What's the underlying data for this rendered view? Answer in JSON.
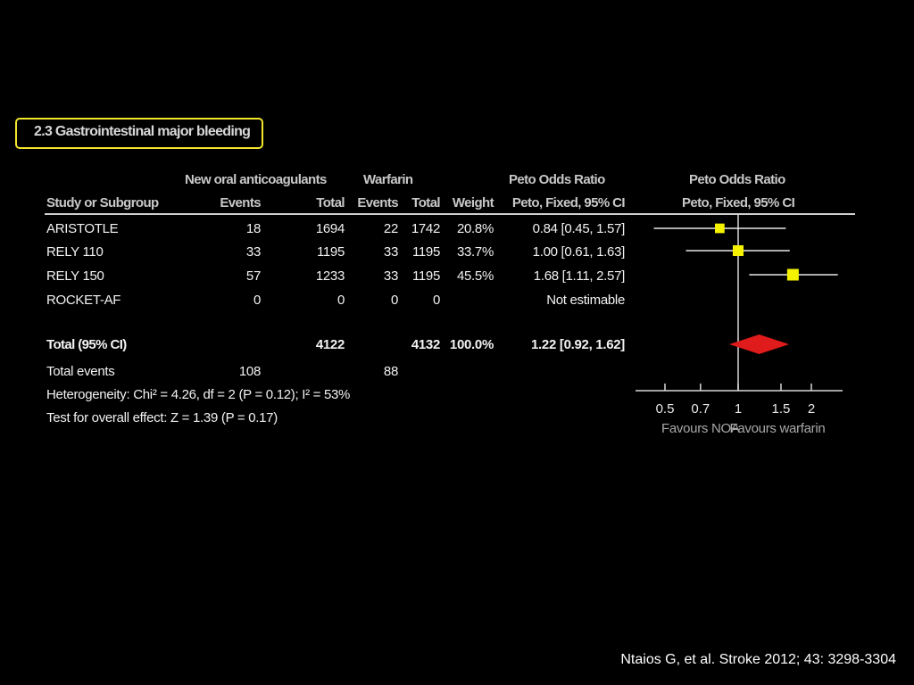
{
  "title": "2.3 Gastrointestinal major bleeding",
  "headers": {
    "group_noa": "New oral anticoagulants",
    "group_warfarin": "Warfarin",
    "group_or": "Peto Odds Ratio",
    "group_plot": "Peto Odds Ratio",
    "study": "Study or Subgroup",
    "events_noa": "Events",
    "total_noa": "Total",
    "events_w": "Events",
    "total_w": "Total",
    "weight": "Weight",
    "method": "Peto, Fixed, 95% CI",
    "method_plot": "Peto, Fixed, 95% CI"
  },
  "rows": [
    {
      "study": "ARISTOTLE",
      "events_noa": "18",
      "total_noa": "1694",
      "events_w": "22",
      "total_w": "1742",
      "weight": "20.8%",
      "ci": "0.84 [0.45, 1.57]"
    },
    {
      "study": "RELY 110",
      "events_noa": "33",
      "total_noa": "1195",
      "events_w": "33",
      "total_w": "1195",
      "weight": "33.7%",
      "ci": "1.00 [0.61, 1.63]"
    },
    {
      "study": "RELY 150",
      "events_noa": "57",
      "total_noa": "1233",
      "events_w": "33",
      "total_w": "1195",
      "weight": "45.5%",
      "ci": "1.68 [1.11, 2.57]"
    },
    {
      "study": "ROCKET-AF",
      "events_noa": "0",
      "total_noa": "0",
      "events_w": "0",
      "total_w": "0",
      "weight": "",
      "ci": "Not estimable"
    }
  ],
  "total": {
    "label": "Total (95% CI)",
    "total_noa": "4122",
    "total_w": "4132",
    "weight": "100.0%",
    "ci": "1.22 [0.92, 1.62]"
  },
  "total_events": {
    "label": "Total events",
    "noa": "108",
    "warfarin": "88"
  },
  "heterogeneity": "Heterogeneity: Chi² = 4.26, df = 2 (P = 0.12); I² = 53%",
  "overall_effect": "Test for overall effect: Z = 1.39 (P = 0.17)",
  "citation": "Ntaios  G, et al. Stroke 2012; 43: 3298-3304",
  "colors": {
    "square": "#f5f200",
    "diamond": "#e01b1b",
    "box_border": "#f2e52c"
  },
  "chart_data": {
    "type": "forest",
    "x_scale": "log",
    "xlim": [
      0.5,
      2
    ],
    "ticks": [
      0.5,
      0.7,
      1,
      1.5,
      2
    ],
    "tick_labels": [
      "0.5",
      "0.7",
      "1",
      "1.5",
      "2"
    ],
    "favours_left": "Favours NOA",
    "favours_right": "Favours warfarin",
    "studies": [
      {
        "name": "ARISTOTLE",
        "or": 0.84,
        "lo": 0.45,
        "hi": 1.57,
        "weight": 20.8
      },
      {
        "name": "RELY 110",
        "or": 1.0,
        "lo": 0.61,
        "hi": 1.63,
        "weight": 33.7
      },
      {
        "name": "RELY 150",
        "or": 1.68,
        "lo": 1.11,
        "hi": 2.57,
        "weight": 45.5
      }
    ],
    "pooled": {
      "or": 1.22,
      "lo": 0.92,
      "hi": 1.62
    }
  }
}
